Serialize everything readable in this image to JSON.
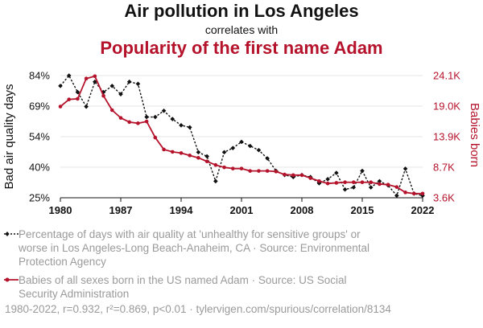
{
  "header": {
    "title": "Air pollution in Los Angeles",
    "subtitle": "correlates with",
    "title2": "Popularity of the first name Adam"
  },
  "legend": {
    "series1": "Percentage of days with air quality at 'unhealthy for sensitive groups' or worse in Los Angeles-Long Beach-Anaheim, CA · Source: Environmental Protection Agency",
    "series2": "Babies of all sexes born in the US named Adam · Source: US Social Security Administration"
  },
  "footer": {
    "stats": "1980-2022, r=0.932, r²=0.869, p<0.01 · tylervigen.com/spurious/correlation/8134"
  },
  "colors": {
    "series1": "#111111",
    "series2": "#b5122b",
    "grid": "#e6e6e6"
  },
  "chart_data": {
    "type": "line",
    "x": [
      1980,
      1981,
      1982,
      1983,
      1984,
      1985,
      1986,
      1987,
      1988,
      1989,
      1990,
      1991,
      1992,
      1993,
      1994,
      1995,
      1996,
      1997,
      1998,
      1999,
      2000,
      2001,
      2002,
      2003,
      2004,
      2005,
      2006,
      2007,
      2008,
      2009,
      2010,
      2011,
      2012,
      2013,
      2014,
      2015,
      2016,
      2017,
      2018,
      2019,
      2020,
      2021,
      2022
    ],
    "xlabel": "",
    "xticks": [
      "1980",
      "1987",
      "1994",
      "2001",
      "2008",
      "2015",
      "2022"
    ],
    "xlim": [
      1980,
      2022
    ],
    "y_left": {
      "label": "Bad air quality days",
      "ticks": [
        "84%",
        "69%",
        "54%",
        "40%",
        "25%"
      ],
      "lim": [
        25,
        84
      ]
    },
    "y_right": {
      "label": "Babies born",
      "ticks": [
        "24.1K",
        "19.0K",
        "13.9K",
        "8.7K",
        "3.6K"
      ],
      "lim": [
        3600,
        24100
      ]
    },
    "series": [
      {
        "name": "Bad air quality days",
        "axis": "left",
        "marker": "diamond",
        "dashed": true,
        "values": [
          79,
          84,
          76,
          69,
          81,
          76,
          79,
          75,
          81,
          80,
          64,
          64,
          67,
          63,
          60,
          59,
          47,
          45,
          33,
          47,
          49,
          52,
          50,
          48,
          44,
          38,
          36,
          35,
          36,
          35,
          32,
          34,
          37,
          29,
          30,
          38,
          30,
          33,
          31,
          26,
          39,
          27,
          26
        ]
      },
      {
        "name": "Babies born",
        "axis": "right",
        "marker": "circle",
        "dashed": false,
        "values": [
          18900,
          20100,
          20200,
          23600,
          24000,
          20700,
          18300,
          17000,
          16300,
          16100,
          16400,
          13700,
          11700,
          11300,
          11100,
          10700,
          10300,
          9700,
          9100,
          8700,
          8500,
          8500,
          8100,
          8100,
          8100,
          8000,
          7500,
          7400,
          7400,
          6900,
          6400,
          6000,
          6100,
          6200,
          6200,
          6200,
          6200,
          5900,
          5800,
          5400,
          4500,
          4300,
          4300
        ]
      }
    ]
  }
}
